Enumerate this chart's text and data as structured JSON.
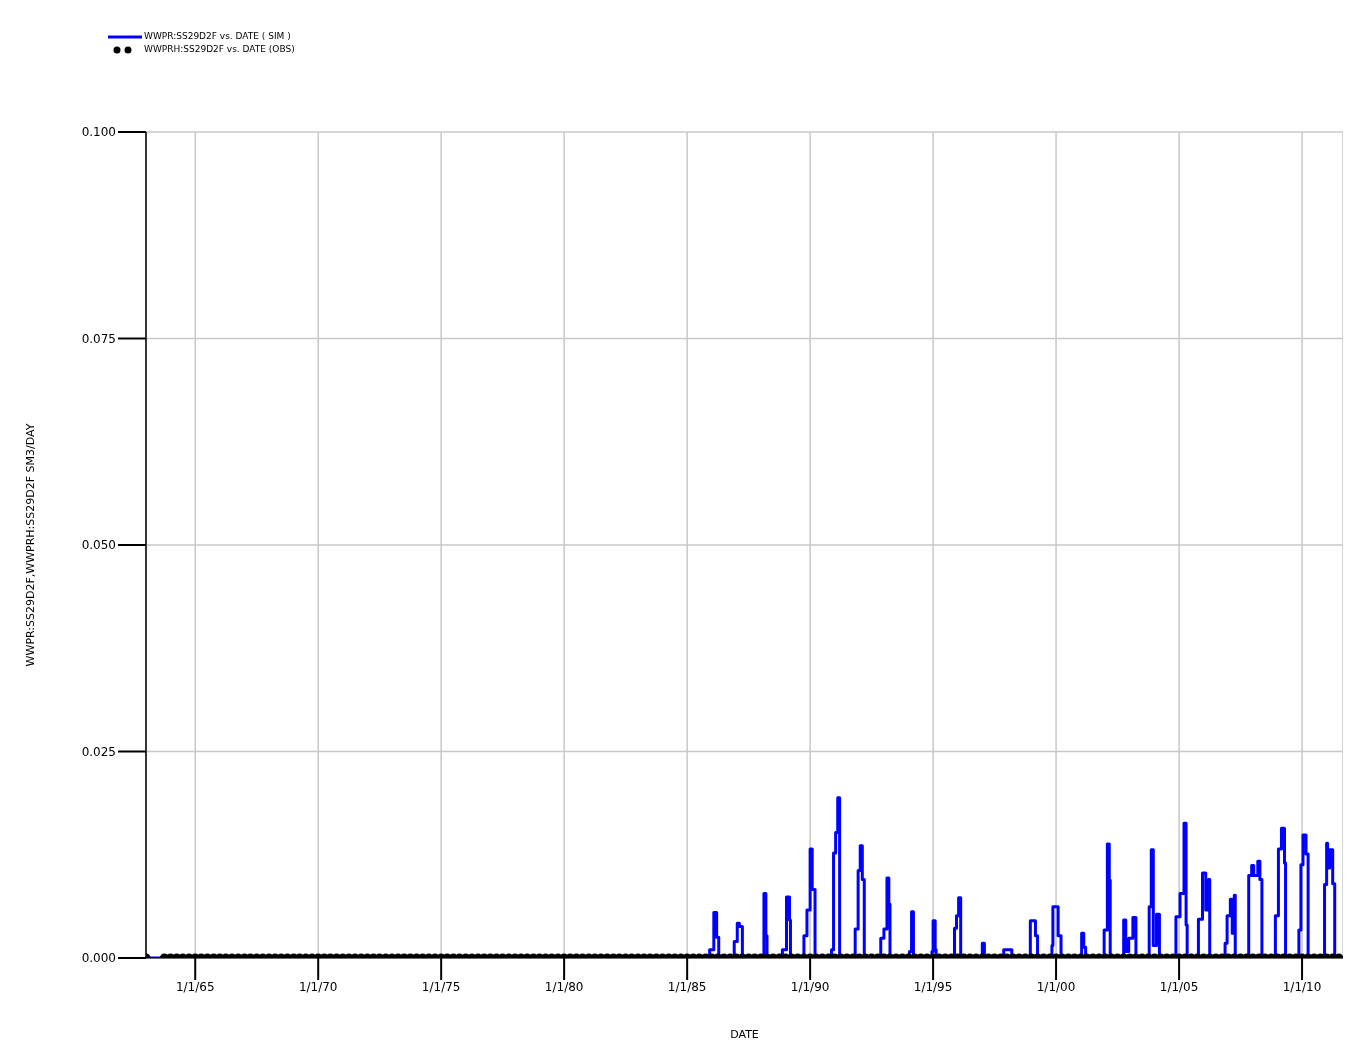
{
  "chart_data": {
    "type": "step",
    "xlabel": "DATE",
    "ylabel": "WWPR:SS29D2F,WWPRH:SS29D2F    SM3/DAY",
    "xlim": [
      "1963-01-01",
      "2011-09-01"
    ],
    "xticks": [
      {
        "value": "1965-01-01",
        "label": "1/1/65"
      },
      {
        "value": "1970-01-01",
        "label": "1/1/70"
      },
      {
        "value": "1975-01-01",
        "label": "1/1/75"
      },
      {
        "value": "1980-01-01",
        "label": "1/1/80"
      },
      {
        "value": "1985-01-01",
        "label": "1/1/85"
      },
      {
        "value": "1990-01-01",
        "label": "1/1/90"
      },
      {
        "value": "1995-01-01",
        "label": "1/1/95"
      },
      {
        "value": "2000-01-01",
        "label": "1/1/00"
      },
      {
        "value": "2005-01-01",
        "label": "1/1/05"
      },
      {
        "value": "2010-01-01",
        "label": "1/1/10"
      }
    ],
    "ylim": [
      0,
      0.1
    ],
    "yticks": [
      {
        "value": 0,
        "label": "0.000"
      },
      {
        "value": 0.025,
        "label": "0.025"
      },
      {
        "value": 0.05,
        "label": "0.050"
      },
      {
        "value": 0.075,
        "label": "0.075"
      },
      {
        "value": 0.1,
        "label": "0.100"
      }
    ],
    "grid": true,
    "legend": "top left",
    "series": [
      {
        "name": "WWPR:SS29D2F vs. DATE ( SIM )",
        "color": "#0000ff",
        "marker": "none",
        "x": [
          "1963-01-01",
          "1985-12-01",
          "1986-02-01",
          "1986-03-15",
          "1986-04-15",
          "1986-12-01",
          "1987-01-15",
          "1987-02-15",
          "1987-04-01",
          "1988-02-15",
          "1988-03-15",
          "1988-04-01",
          "1988-11-15",
          "1989-01-15",
          "1989-03-01",
          "1989-03-15",
          "1989-10-01",
          "1989-11-15",
          "1990-01-01",
          "1990-02-01",
          "1990-03-15",
          "1990-11-15",
          "1990-12-15",
          "1991-01-15",
          "1991-02-15",
          "1991-03-15",
          "1991-11-01",
          "1991-12-15",
          "1992-01-15",
          "1992-02-15",
          "1992-03-15",
          "1992-11-15",
          "1993-01-01",
          "1993-02-15",
          "1993-03-15",
          "1993-04-01",
          "1994-01-15",
          "1994-02-15",
          "1994-03-15",
          "1994-12-15",
          "1995-01-01",
          "1995-02-01",
          "1995-02-15",
          "1995-11-15",
          "1995-12-15",
          "1996-01-15",
          "1996-02-15",
          "1997-01-01",
          "1997-02-01",
          "1997-11-15",
          "1998-03-15",
          "1998-12-15",
          "1999-02-01",
          "1999-03-01",
          "1999-04-01",
          "1999-11-01",
          "1999-11-15",
          "2000-02-01",
          "2000-03-15",
          "2001-01-15",
          "2001-02-15",
          "2001-03-15",
          "2001-12-15",
          "2002-02-01",
          "2002-03-01",
          "2002-03-15",
          "2002-10-01",
          "2002-11-01",
          "2002-12-15",
          "2003-02-15",
          "2003-04-01",
          "2003-10-15",
          "2003-11-15",
          "2003-12-15",
          "2004-02-01",
          "2004-03-15",
          "2004-11-15",
          "2005-01-15",
          "2005-03-15",
          "2005-04-15",
          "2005-05-01",
          "2005-10-15",
          "2005-12-15",
          "2006-02-01",
          "2006-03-15",
          "2006-04-01",
          "2006-11-15",
          "2006-12-15",
          "2007-02-01",
          "2007-03-01",
          "2007-04-01",
          "2007-04-15",
          "2007-11-01",
          "2007-12-15",
          "2008-01-15",
          "2008-03-15",
          "2008-04-15",
          "2008-05-15",
          "2008-12-01",
          "2009-01-15",
          "2009-03-01",
          "2009-04-15",
          "2009-05-01",
          "2009-11-15",
          "2009-12-15",
          "2010-01-15",
          "2010-03-01",
          "2010-04-01",
          "2010-12-01",
          "2011-01-01",
          "2011-01-15",
          "2011-02-15",
          "2011-04-01",
          "2011-05-01"
        ],
        "values": [
          0,
          0.001,
          0.0055,
          0.0025,
          0,
          0.002,
          0.0042,
          0.0038,
          0,
          0.0078,
          0.0027,
          0,
          0.001,
          0.0074,
          0.0046,
          0,
          0.0027,
          0.0058,
          0.0132,
          0.0083,
          0,
          0.001,
          0.0127,
          0.0152,
          0.0194,
          0,
          0.0035,
          0.0106,
          0.0136,
          0.0095,
          0,
          0.0024,
          0.0035,
          0.0097,
          0.0065,
          0,
          0.0008,
          0.0056,
          0,
          0.0008,
          0.0045,
          0.001,
          0,
          0.0036,
          0.0051,
          0.0073,
          0,
          0.0018,
          0,
          0.001,
          0,
          0.0045,
          0.0045,
          0.0027,
          0,
          0.0015,
          0.0062,
          0.0027,
          0,
          0.003,
          0.0013,
          0,
          0.0034,
          0.0138,
          0.0094,
          0,
          0.0046,
          0.0008,
          0.0024,
          0.0049,
          0,
          0.0062,
          0.0131,
          0.0015,
          0.0053,
          0,
          0.005,
          0.0078,
          0.0163,
          0.004,
          0,
          0.0047,
          0.0103,
          0.0058,
          0.0095,
          0,
          0.0018,
          0.0051,
          0.0071,
          0.003,
          0.0076,
          0,
          0.01,
          0.0112,
          0.01,
          0.0117,
          0.0095,
          0,
          0.0051,
          0.0132,
          0.0157,
          0.0115,
          0,
          0.0034,
          0.0113,
          0.0149,
          0.0126,
          0,
          0.0089,
          0.0139,
          0.0109,
          0.0131,
          0.009,
          0
        ]
      },
      {
        "name": "WWPRH:SS29D2F vs. DATE (OBS)",
        "type": "scatter",
        "color": "#000000",
        "marker": "circle",
        "x": [
          "1963-01-01",
          "1963-10-01",
          "1964-01-01",
          "1964-04-01",
          "1964-07-01",
          "1964-10-01",
          "1965-01-01",
          "1965-04-01",
          "1965-07-01",
          "1965-10-01",
          "1966-01-01",
          "1966-04-01",
          "1966-07-01",
          "1966-10-01",
          "1967-01-01",
          "1967-04-01",
          "1967-07-01",
          "1967-10-01",
          "1968-01-01",
          "1968-04-01",
          "1968-07-01",
          "1968-10-01",
          "1969-01-01",
          "1969-04-01",
          "1969-07-01",
          "1969-10-01",
          "1970-01-01",
          "1970-04-01",
          "1970-07-01",
          "1970-10-01",
          "1971-01-01",
          "1971-04-01",
          "1971-07-01",
          "1971-10-01",
          "1972-01-01",
          "1972-04-01",
          "1972-07-01",
          "1972-10-01",
          "1973-01-01",
          "1973-04-01",
          "1973-07-01",
          "1973-10-01",
          "1974-01-01",
          "1974-04-01",
          "1974-07-01",
          "1974-10-01",
          "1975-01-01",
          "1975-04-01",
          "1975-07-01",
          "1975-10-01",
          "1976-01-01",
          "1976-04-01",
          "1976-07-01",
          "1976-10-01",
          "1977-01-01",
          "1977-04-01",
          "1977-07-01",
          "1977-10-01",
          "1978-01-01",
          "1978-04-01",
          "1978-07-01",
          "1978-10-01",
          "1979-01-01",
          "1979-04-01",
          "1979-07-01",
          "1979-10-01",
          "1980-01-01",
          "1980-04-01",
          "1980-07-01",
          "1980-10-01",
          "1981-01-01",
          "1981-04-01",
          "1981-07-01",
          "1981-10-01",
          "1982-01-01",
          "1982-04-01",
          "1982-07-01",
          "1982-10-01",
          "1983-01-01",
          "1983-04-01",
          "1983-07-01",
          "1983-10-01",
          "1984-01-01",
          "1984-04-01",
          "1984-07-01",
          "1984-10-01",
          "1985-01-01",
          "1985-04-01",
          "1985-07-01",
          "1985-10-01",
          "1986-01-01",
          "1986-04-01",
          "1986-07-01",
          "1986-10-01",
          "1987-01-01",
          "1987-04-01",
          "1987-07-01",
          "1987-10-01",
          "1988-01-01",
          "1988-04-01",
          "1988-07-01",
          "1988-10-01",
          "1989-01-01",
          "1989-04-01",
          "1989-07-01",
          "1989-10-01",
          "1990-01-01",
          "1990-04-01",
          "1990-07-01",
          "1990-10-01",
          "1991-01-01",
          "1991-04-01",
          "1991-07-01",
          "1991-10-01",
          "1992-01-01",
          "1992-04-01",
          "1992-07-01",
          "1992-10-01",
          "1993-01-01",
          "1993-04-01",
          "1993-07-01",
          "1993-10-01",
          "1994-01-01",
          "1994-04-01",
          "1994-07-01",
          "1994-10-01",
          "1995-01-01",
          "1995-04-01",
          "1995-07-01",
          "1995-10-01",
          "1996-01-01",
          "1996-04-01",
          "1996-07-01",
          "1996-10-01",
          "1997-01-01",
          "1997-04-01",
          "1997-07-01",
          "1997-10-01",
          "1998-01-01",
          "1998-04-01",
          "1998-07-01",
          "1998-10-01",
          "1999-01-01",
          "1999-04-01",
          "1999-07-01",
          "1999-10-01",
          "2000-01-01",
          "2000-04-01",
          "2000-07-01",
          "2000-10-01",
          "2001-01-01",
          "2001-04-01",
          "2001-07-01",
          "2001-10-01",
          "2002-01-01",
          "2002-04-01",
          "2002-07-01",
          "2002-10-01",
          "2003-01-01",
          "2003-04-01",
          "2003-07-01",
          "2003-10-01",
          "2004-01-01",
          "2004-04-01",
          "2004-07-01",
          "2004-10-01",
          "2005-01-01",
          "2005-04-01",
          "2005-07-01",
          "2005-10-01",
          "2006-01-01",
          "2006-04-01",
          "2006-07-01",
          "2006-10-01",
          "2007-01-01",
          "2007-04-01",
          "2007-07-01",
          "2007-10-01",
          "2008-01-01",
          "2008-04-01",
          "2008-07-01",
          "2008-10-01",
          "2009-01-01",
          "2009-04-01",
          "2009-07-01",
          "2009-10-01",
          "2010-01-01",
          "2010-04-01",
          "2010-07-01",
          "2010-10-01",
          "2011-01-01",
          "2011-04-01",
          "2011-07-01"
        ],
        "values": [
          0,
          0,
          0,
          0,
          0,
          0,
          0,
          0,
          0,
          0,
          0,
          0,
          0,
          0,
          0,
          0,
          0,
          0,
          0,
          0,
          0,
          0,
          0,
          0,
          0,
          0,
          0,
          0,
          0,
          0,
          0,
          0,
          0,
          0,
          0,
          0,
          0,
          0,
          0,
          0,
          0,
          0,
          0,
          0,
          0,
          0,
          0,
          0,
          0,
          0,
          0,
          0,
          0,
          0,
          0,
          0,
          0,
          0,
          0,
          0,
          0,
          0,
          0,
          0,
          0,
          0,
          0,
          0,
          0,
          0,
          0,
          0,
          0,
          0,
          0,
          0,
          0,
          0,
          0,
          0,
          0,
          0,
          0,
          0,
          0,
          0,
          0,
          0,
          0,
          0,
          0,
          0,
          0,
          0,
          0,
          0,
          0,
          0,
          0,
          0,
          0,
          0,
          0,
          0,
          0,
          0,
          0,
          0,
          0,
          0,
          0,
          0,
          0,
          0,
          0,
          0,
          0,
          0,
          0,
          0,
          0,
          0,
          0,
          0,
          0,
          0,
          0,
          0,
          0,
          0,
          0,
          0,
          0,
          0,
          0,
          0,
          0,
          0,
          0,
          0,
          0,
          0,
          0,
          0,
          0,
          0,
          0,
          0,
          0,
          0,
          0,
          0,
          0,
          0,
          0,
          0,
          0,
          0,
          0,
          0,
          0,
          0,
          0,
          0,
          0,
          0,
          0,
          0,
          0,
          0,
          0,
          0,
          0,
          0,
          0,
          0,
          0,
          0,
          0,
          0,
          0,
          0,
          0,
          0,
          0,
          0,
          0,
          0,
          0,
          0,
          0,
          0,
          0
        ]
      }
    ]
  }
}
